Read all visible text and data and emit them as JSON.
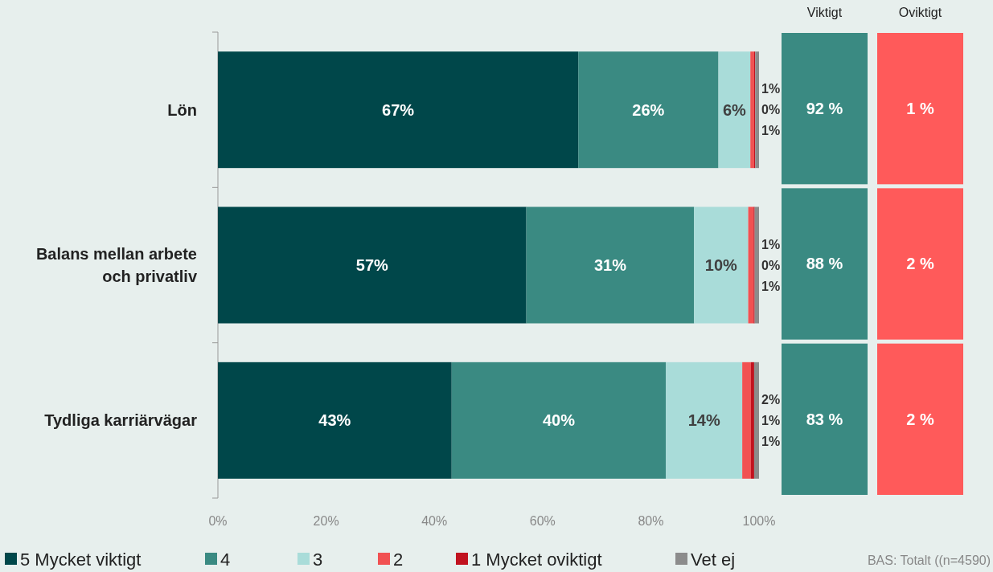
{
  "chart_data": [
    {
      "type": "bar",
      "orientation": "horizontal",
      "stacked": true,
      "categories": [
        "Lön",
        "Balans mellan arbete\noch privatliv",
        "Tydliga karriärvägar"
      ],
      "series": [
        {
          "name": "5 Mycket viktigt",
          "color": "#00474a",
          "values": [
            66.6,
            57,
            43.2
          ],
          "value_labels": [
            "67%",
            "57%",
            "43%"
          ]
        },
        {
          "name": "4",
          "color": "#3a8a82",
          "values": [
            25.9,
            31,
            39.6
          ],
          "value_labels": [
            "26%",
            "31%",
            "40%"
          ]
        },
        {
          "name": "3",
          "color": "#a9dcd9",
          "values": [
            5.9,
            10,
            14.1
          ],
          "value_labels": [
            "6%",
            "10%",
            "14%"
          ]
        },
        {
          "name": "2",
          "color": "#f15152",
          "values": [
            0.7,
            1,
            1.6
          ],
          "value_labels": [
            "1%",
            "1%",
            "2%"
          ]
        },
        {
          "name": "1 Mycket oviktigt",
          "color": "#c1121f",
          "values": [
            0.2,
            0.2,
            0.6
          ],
          "value_labels": [
            "0%",
            "0%",
            "1%"
          ]
        },
        {
          "name": "Vet ej",
          "color": "#8c8c8c",
          "values": [
            0.7,
            0.8,
            0.9
          ],
          "value_labels": [
            "1%",
            "1%",
            "1%"
          ]
        }
      ],
      "xlim": [
        0,
        100
      ],
      "xticks": [
        {
          "value": 0,
          "label": "0%"
        },
        {
          "value": 20,
          "label": "20%"
        },
        {
          "value": 40,
          "label": "40%"
        },
        {
          "value": 60,
          "label": "60%"
        },
        {
          "value": 80,
          "label": "80%"
        },
        {
          "value": 100,
          "label": "100%"
        }
      ],
      "legend": "bottom",
      "annotations": [
        "BAS: Totalt ((n=4590)"
      ]
    },
    {
      "type": "heatmap",
      "categories": [
        "Viktigt",
        "Oviktigt"
      ],
      "y_categories": [
        null,
        null,
        null
      ],
      "colors": [
        "#3a8a82",
        "#ff5a5a"
      ],
      "cells": [
        [
          92,
          1
        ],
        [
          88,
          2
        ],
        [
          83,
          2
        ]
      ],
      "cell_labels": [
        [
          "92 %",
          "1 %"
        ],
        [
          "88 %",
          "2 %"
        ],
        [
          "83 %",
          "2 %"
        ]
      ]
    }
  ]
}
